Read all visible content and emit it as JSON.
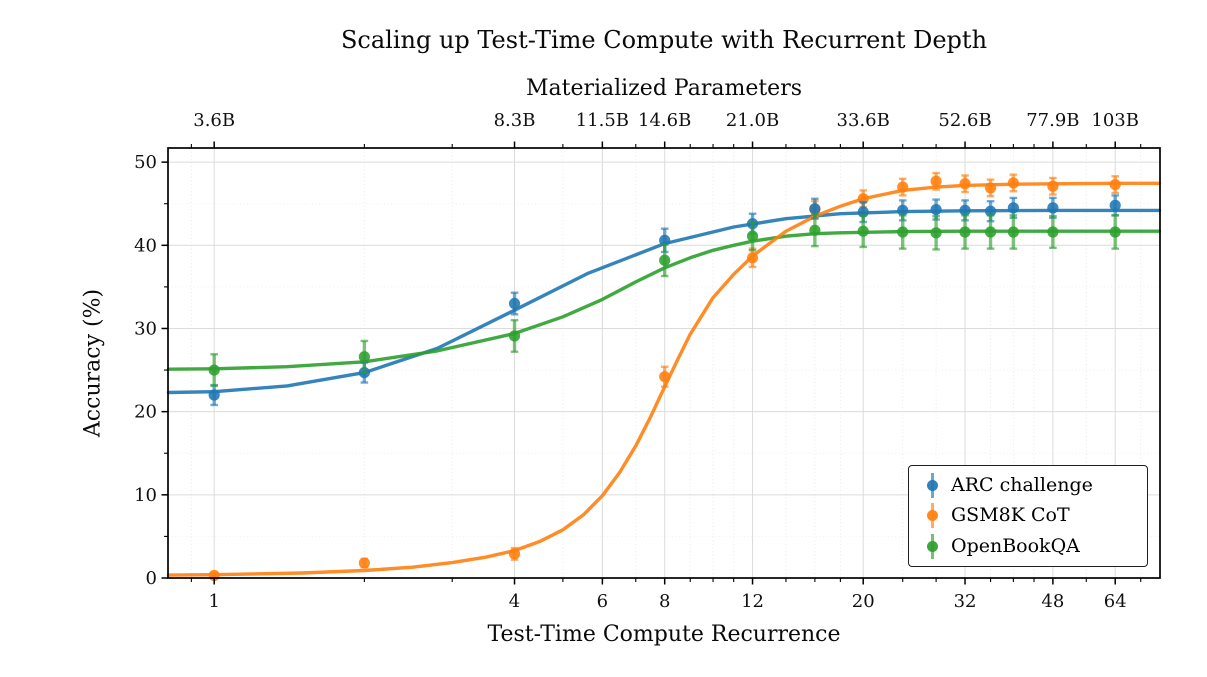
{
  "chart_data": {
    "type": "line",
    "title": "Scaling up Test-Time Compute with Recurrent Depth",
    "top_xlabel": "Materialized Parameters",
    "xlabel": "Test-Time Compute Recurrence",
    "ylabel": "Accuracy (%)",
    "x_scale": "log2",
    "grid": "major solid + minor dotted",
    "legend_position": "lower right",
    "xlim": [
      0.808,
      78.7
    ],
    "ylim": [
      0,
      51.7
    ],
    "x_ticks": [
      1,
      4,
      6,
      8,
      12,
      20,
      32,
      48,
      64
    ],
    "x_tick_labels": [
      "1",
      "4",
      "6",
      "8",
      "12",
      "20",
      "32",
      "48",
      "64"
    ],
    "top_tick_labels": [
      "3.6B",
      "8.3B",
      "11.5B",
      "14.6B",
      "21.0B",
      "33.6B",
      "52.6B",
      "77.9B",
      "103B"
    ],
    "x_minor_ticks": [
      0.9,
      2,
      3,
      5,
      7,
      9,
      10,
      11,
      14,
      16,
      18,
      24,
      28,
      36,
      40,
      44,
      56,
      72
    ],
    "y_ticks": [
      0,
      10,
      20,
      30,
      40,
      50
    ],
    "y_minor_ticks": [
      5,
      15,
      25,
      35,
      45
    ],
    "x": [
      1,
      2,
      4,
      8,
      12,
      16,
      20,
      24,
      28,
      32,
      36,
      40,
      48,
      64
    ],
    "series": [
      {
        "id": "arc-challenge",
        "name": "ARC challenge",
        "color": "#1f77b4",
        "values": [
          22.0,
          24.7,
          33.0,
          40.6,
          42.6,
          44.4,
          44.0,
          44.2,
          44.3,
          44.2,
          44.1,
          44.5,
          44.5,
          44.8
        ],
        "errors": [
          1.2,
          1.2,
          1.3,
          1.4,
          1.2,
          1.2,
          1.2,
          1.2,
          1.2,
          1.2,
          1.2,
          1.2,
          1.2,
          1.2
        ],
        "curve": [
          [
            0.81,
            22.3
          ],
          [
            1,
            22.4
          ],
          [
            1.4,
            23.1
          ],
          [
            2,
            24.7
          ],
          [
            2.8,
            27.6
          ],
          [
            4,
            32.2
          ],
          [
            5.6,
            36.6
          ],
          [
            8,
            40.2
          ],
          [
            11,
            42.2
          ],
          [
            14,
            43.2
          ],
          [
            18,
            43.8
          ],
          [
            24,
            44.05
          ],
          [
            32,
            44.15
          ],
          [
            48,
            44.2
          ],
          [
            64,
            44.2
          ],
          [
            78.5,
            44.2
          ]
        ]
      },
      {
        "id": "gsm8k-cot",
        "name": "GSM8K CoT",
        "color": "#ff7f0e",
        "values": [
          0.3,
          1.8,
          2.9,
          24.2,
          38.5,
          44.3,
          45.6,
          47.0,
          47.7,
          47.4,
          46.9,
          47.5,
          47.1,
          47.3
        ],
        "errors": [
          0.3,
          0.5,
          0.7,
          1.2,
          1.1,
          1.0,
          1.0,
          1.0,
          1.0,
          1.0,
          1.0,
          1.0,
          1.0,
          1.0
        ],
        "curve": [
          [
            0.81,
            0.35
          ],
          [
            1,
            0.4
          ],
          [
            1.5,
            0.6
          ],
          [
            2,
            0.9
          ],
          [
            2.5,
            1.3
          ],
          [
            3,
            1.85
          ],
          [
            3.5,
            2.5
          ],
          [
            4,
            3.3
          ],
          [
            4.5,
            4.4
          ],
          [
            5,
            5.8
          ],
          [
            5.5,
            7.6
          ],
          [
            6,
            9.9
          ],
          [
            6.5,
            12.7
          ],
          [
            7,
            15.9
          ],
          [
            7.5,
            19.4
          ],
          [
            8,
            23.0
          ],
          [
            8.5,
            26.3
          ],
          [
            9,
            29.3
          ],
          [
            10,
            33.7
          ],
          [
            11,
            36.5
          ],
          [
            12,
            38.7
          ],
          [
            14,
            41.7
          ],
          [
            16,
            43.5
          ],
          [
            18,
            44.7
          ],
          [
            20,
            45.6
          ],
          [
            24,
            46.6
          ],
          [
            28,
            47.0
          ],
          [
            32,
            47.2
          ],
          [
            40,
            47.35
          ],
          [
            48,
            47.4
          ],
          [
            64,
            47.45
          ],
          [
            78.5,
            47.45
          ]
        ]
      },
      {
        "id": "openbookqa",
        "name": "OpenBookQA",
        "color": "#2ca02c",
        "values": [
          25.0,
          26.6,
          29.1,
          38.2,
          41.1,
          41.8,
          41.7,
          41.6,
          41.5,
          41.6,
          41.6,
          41.6,
          41.6,
          41.6
        ],
        "errors": [
          1.9,
          1.9,
          1.9,
          1.9,
          1.7,
          1.9,
          1.9,
          2.0,
          2.0,
          2.0,
          2.0,
          2.0,
          1.9,
          2.0
        ],
        "curve": [
          [
            0.81,
            25.1
          ],
          [
            1,
            25.15
          ],
          [
            1.4,
            25.4
          ],
          [
            2,
            26.0
          ],
          [
            2.8,
            27.3
          ],
          [
            4,
            29.4
          ],
          [
            5,
            31.4
          ],
          [
            6,
            33.5
          ],
          [
            7,
            35.6
          ],
          [
            8,
            37.3
          ],
          [
            9,
            38.5
          ],
          [
            10,
            39.4
          ],
          [
            11,
            40.0
          ],
          [
            12,
            40.5
          ],
          [
            14,
            41.1
          ],
          [
            16,
            41.4
          ],
          [
            18,
            41.5
          ],
          [
            24,
            41.65
          ],
          [
            32,
            41.7
          ],
          [
            48,
            41.7
          ],
          [
            64,
            41.7
          ],
          [
            78.5,
            41.7
          ]
        ]
      }
    ]
  }
}
